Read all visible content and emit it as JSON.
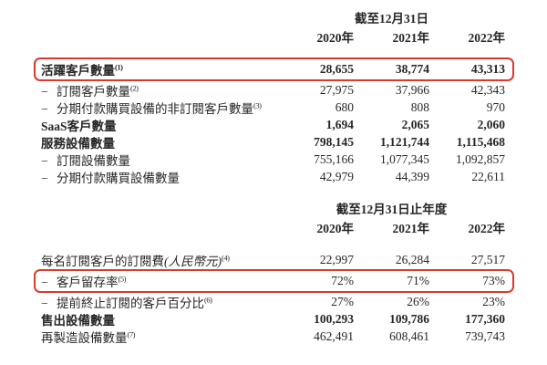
{
  "dash_char": "−",
  "colors": {
    "highlight_box": "#d93a2d",
    "text": "#262626"
  },
  "sections": [
    {
      "period_header": "截至12月31日",
      "years": [
        "2020年",
        "2021年",
        "2022年"
      ],
      "rows": [
        {
          "label": "活躍客戶數量",
          "sup": "(1)",
          "values": [
            "28,655",
            "38,774",
            "43,313"
          ]
        },
        {
          "label": "訂閱客戶數量",
          "sup": "(2)",
          "values": [
            "27,975",
            "37,966",
            "42,343"
          ]
        },
        {
          "label": "分期付款購買設備的非訂閱客戶數量",
          "sup": "(3)",
          "values": [
            "680",
            "808",
            "970"
          ]
        },
        {
          "label": "SaaS客戶數量",
          "values": [
            "1,694",
            "2,065",
            "2,060"
          ]
        },
        {
          "label": "服務設備數量",
          "values": [
            "798,145",
            "1,121,744",
            "1,115,468"
          ]
        },
        {
          "label": "訂閱設備數量",
          "values": [
            "755,166",
            "1,077,345",
            "1,092,857"
          ]
        },
        {
          "label": "分期付款購買設備數量",
          "values": [
            "42,979",
            "44,399",
            "22,611"
          ]
        }
      ]
    },
    {
      "period_header": "截至12月31日止年度",
      "years": [
        "2020年",
        "2021年",
        "2022年"
      ],
      "rows": [
        {
          "label": "每名訂閱客戶的訂閱費",
          "label_note": "(人民幣元)",
          "sup": "(4)",
          "values": [
            "22,997",
            "26,284",
            "27,517"
          ]
        },
        {
          "label": "客戶留存率",
          "sup": "(5)",
          "values": [
            "72%",
            "71%",
            "73%"
          ]
        },
        {
          "label": "提前終止訂閱的客戶百分比",
          "sup": "(6)",
          "values": [
            "27%",
            "26%",
            "23%"
          ]
        },
        {
          "label": "售出設備數量",
          "values": [
            "100,293",
            "109,786",
            "177,360"
          ]
        },
        {
          "label": "再製造設備數量",
          "sup": "(7)",
          "values": [
            "462,491",
            "608,461",
            "739,743"
          ]
        }
      ]
    }
  ]
}
